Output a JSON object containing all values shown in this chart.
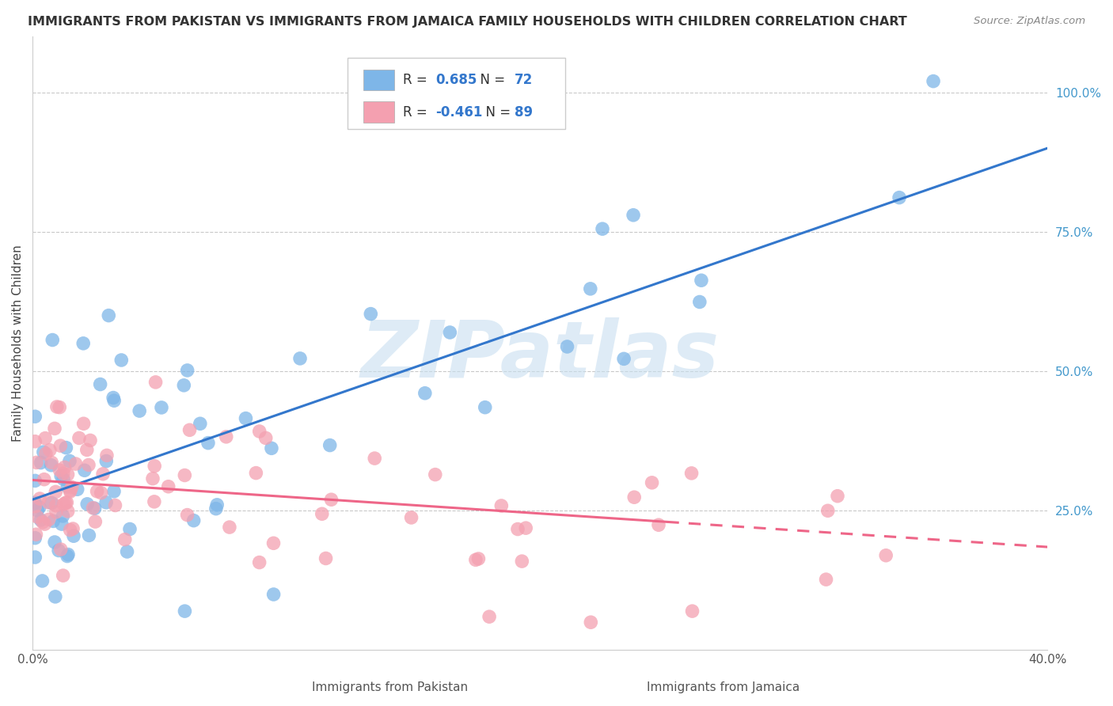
{
  "title": "IMMIGRANTS FROM PAKISTAN VS IMMIGRANTS FROM JAMAICA FAMILY HOUSEHOLDS WITH CHILDREN CORRELATION CHART",
  "source": "Source: ZipAtlas.com",
  "xlabel_bottom": [
    "Immigrants from Pakistan",
    "Immigrants from Jamaica"
  ],
  "ylabel": "Family Households with Children",
  "xlim": [
    0.0,
    0.4
  ],
  "ylim": [
    0.0,
    1.1
  ],
  "yticks_right": [
    0.25,
    0.5,
    0.75,
    1.0
  ],
  "ytick_labels_right": [
    "25.0%",
    "50.0%",
    "75.0%",
    "100.0%"
  ],
  "blue_color": "#7EB6E8",
  "pink_color": "#F4A0B0",
  "blue_line_color": "#3377CC",
  "pink_line_color": "#EE6688",
  "R_blue": 0.685,
  "N_blue": 72,
  "R_pink": -0.461,
  "N_pink": 89,
  "watermark": "ZIPatlas",
  "watermark_color": "#C8DFF0",
  "background_color": "#FFFFFF",
  "grid_color": "#BBBBBB",
  "blue_seed": 12,
  "pink_seed": 7,
  "blue_line_x0": 0.0,
  "blue_line_y0": 0.27,
  "blue_line_x1": 0.4,
  "blue_line_y1": 0.9,
  "pink_line_x0": 0.0,
  "pink_line_y0": 0.305,
  "pink_line_x1": 0.4,
  "pink_line_y1": 0.185,
  "pink_line_solid_end": 0.25,
  "pink_line_dashed_start": 0.25
}
